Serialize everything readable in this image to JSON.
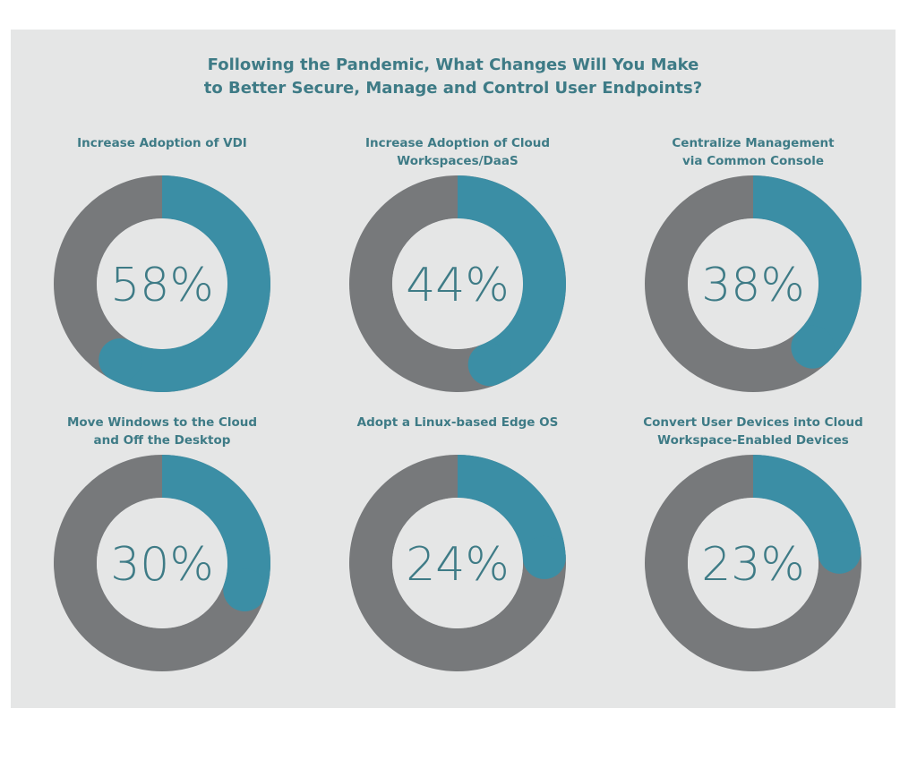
{
  "title": {
    "line1": "Following the Pandemic, What Changes Will You Make",
    "line2": "to Better Secure, Manage and Control User Endpoints?"
  },
  "colors": {
    "background": "#e5e6e6",
    "track": "#77797b",
    "fill": "#3b8ea5",
    "hole": "#e5e6e6",
    "text": "#3e7b86"
  },
  "chart_data": {
    "type": "pie",
    "subtype": "donut",
    "unit": "%",
    "items": [
      {
        "label_lines": [
          "Increase Adoption of VDI"
        ],
        "value": 58,
        "display": "58%"
      },
      {
        "label_lines": [
          "Increase Adoption of Cloud",
          "Workspaces/DaaS"
        ],
        "value": 44,
        "display": "44%"
      },
      {
        "label_lines": [
          "Centralize Management",
          "via Common Console"
        ],
        "value": 38,
        "display": "38%"
      },
      {
        "label_lines": [
          "Move Windows to the Cloud",
          "and Off the Desktop"
        ],
        "value": 30,
        "display": "30%"
      },
      {
        "label_lines": [
          "Adopt a Linux-based Edge OS"
        ],
        "value": 24,
        "display": "24%"
      },
      {
        "label_lines": [
          "Convert User Devices into Cloud",
          "Workspace-Enabled Devices"
        ],
        "value": 23,
        "display": "23%"
      }
    ]
  }
}
